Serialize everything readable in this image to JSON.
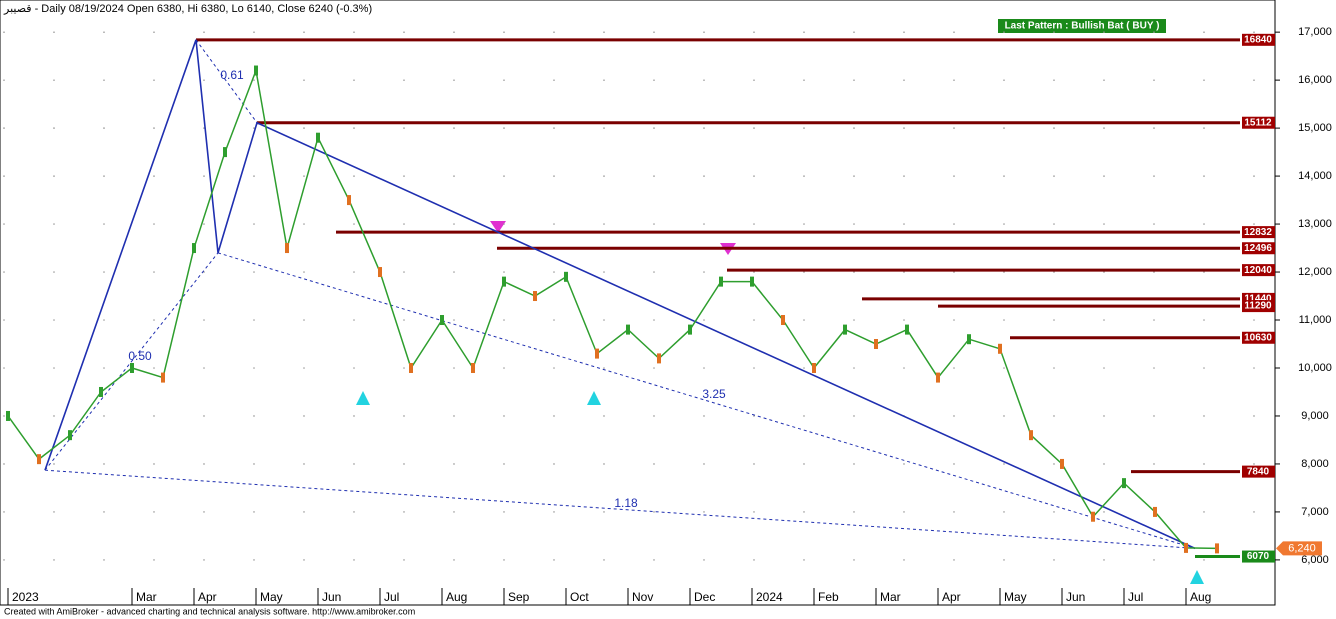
{
  "chart_data": {
    "type": "line",
    "title": "قصيبر - Daily 08/19/2024 Open 6380, Hi 6380, Lo 6140, Close 6240 (-0.3%)",
    "pattern_label": "Last Pattern : Bullish Bat ( BUY )",
    "footer": "Created with AmiBroker - advanced charting and technical analysis software. http://www.amibroker.com",
    "categories": [
      "2023",
      null,
      null,
      null,
      "Mar",
      null,
      "Apr",
      null,
      "May",
      null,
      "Jun",
      null,
      "Jul",
      null,
      "Aug",
      null,
      "Sep",
      null,
      "Oct",
      null,
      "Nov",
      null,
      "Dec",
      null,
      "2024",
      null,
      "Feb",
      null,
      "Mar",
      null,
      "Apr",
      null,
      "May",
      null,
      "Jun",
      null,
      "Jul",
      null,
      "Aug",
      null
    ],
    "series": [
      {
        "color": "#2e9e2e",
        "values": [
          9000,
          8100,
          8600,
          9500,
          10000,
          9800,
          12500,
          14500,
          16200,
          12500,
          14800,
          13500,
          12000,
          10000,
          11000,
          10000,
          11800,
          11500,
          11900,
          10300,
          10800,
          10200,
          10800,
          11800,
          11800,
          11000,
          10000,
          10800,
          10500,
          10800,
          9800,
          10600,
          10400,
          8600,
          8000,
          6900,
          7600,
          7000,
          6250,
          6240
        ]
      }
    ],
    "levels": [
      {
        "value": 16840,
        "color": "#7a0000"
      },
      {
        "value": 15112,
        "color": "#7a0000"
      },
      {
        "value": 12832,
        "color": "#7a0000"
      },
      {
        "value": 12496,
        "color": "#7a0000"
      },
      {
        "value": 12040,
        "color": "#7a0000"
      },
      {
        "value": 11440,
        "color": "#7a0000"
      },
      {
        "value": 11290,
        "color": "#7a0000"
      },
      {
        "value": 10630,
        "color": "#7a0000"
      },
      {
        "value": 7840,
        "color": "#7a0000"
      },
      {
        "value": 6070,
        "color": "#1a8a1a"
      }
    ],
    "pattern": {
      "color": "#1f2fb0",
      "values": [
        7870,
        16840,
        12400,
        15112,
        6240
      ]
    },
    "ratios": [
      "0.61",
      "0.50",
      "3.25",
      "1.18"
    ],
    "last_price": {
      "value": 6240,
      "label": "6,240"
    },
    "ylim": [
      5060,
      17670
    ],
    "yticks": [
      {
        "value": 6000,
        "label": "6,000"
      },
      {
        "value": 7000,
        "label": "7,000"
      },
      {
        "value": 8000,
        "label": "8,000"
      },
      {
        "value": 9000,
        "label": "9,000"
      },
      {
        "value": 10000,
        "label": "10,000"
      },
      {
        "value": 11000,
        "label": "11,000"
      },
      {
        "value": 12000,
        "label": "12,000"
      },
      {
        "value": 13000,
        "label": "13,000"
      },
      {
        "value": 14000,
        "label": "14,000"
      },
      {
        "value": 15000,
        "label": "15,000"
      },
      {
        "value": 16000,
        "label": "16,000"
      },
      {
        "value": 17000,
        "label": "17,000"
      }
    ],
    "grid": true
  }
}
